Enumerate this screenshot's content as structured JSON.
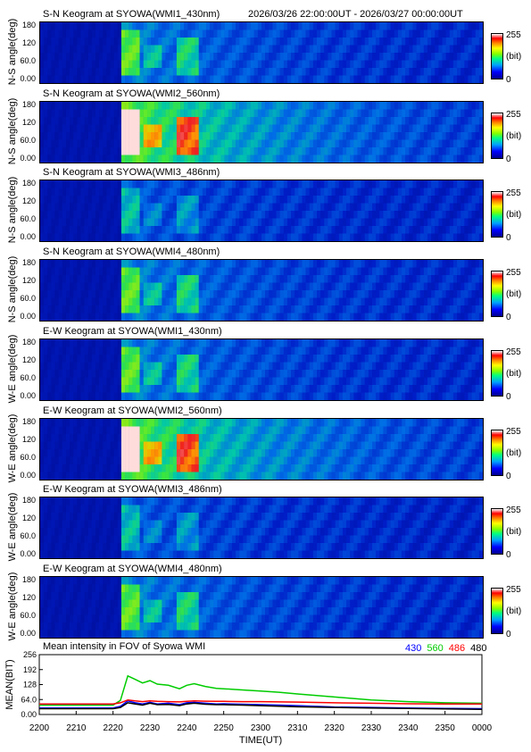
{
  "header": {
    "station_time": "2026/03/26 22:00:00UT - 2026/03/27 00:00:00UT"
  },
  "keograms": [
    {
      "title": "S-N Keogram at SYOWA(WMI1_430nm)",
      "ylabel": "N-S angle(deg)",
      "intensity": 0.45
    },
    {
      "title": "S-N Keogram at SYOWA(WMI2_560nm)",
      "ylabel": "N-S angle(deg)",
      "intensity": 1.0
    },
    {
      "title": "S-N Keogram at SYOWA(WMI3_486nm)",
      "ylabel": "N-S angle(deg)",
      "intensity": 0.3
    },
    {
      "title": "S-N Keogram at SYOWA(WMI4_480nm)",
      "ylabel": "N-S angle(deg)",
      "intensity": 0.45
    },
    {
      "title": "E-W Keogram at SYOWA(WMI1_430nm)",
      "ylabel": "W-E angle(deg)",
      "intensity": 0.45
    },
    {
      "title": "E-W Keogram at SYOWA(WMI2_560nm)",
      "ylabel": "W-E angle(deg)",
      "intensity": 1.0
    },
    {
      "title": "E-W Keogram at SYOWA(WMI3_486nm)",
      "ylabel": "W-E angle(deg)",
      "intensity": 0.3
    },
    {
      "title": "E-W Keogram at SYOWA(WMI4_480nm)",
      "ylabel": "W-E angle(deg)",
      "intensity": 0.45
    }
  ],
  "keogram_yticks": [
    "180",
    "120",
    "60.0",
    "0.00"
  ],
  "colorbar": {
    "max": "255",
    "unit": "(bit)",
    "min": "0"
  },
  "chart_data": {
    "type": "line",
    "title": "Mean intensity in FOV of Syowa WMI",
    "xlabel": "TIME(UT)",
    "ylabel": "MEAN(BIT)",
    "ylim": [
      0,
      256
    ],
    "yticks": [
      "256",
      "192",
      "128",
      "64.0",
      "0.00"
    ],
    "xticks": [
      "2200",
      "2210",
      "2220",
      "2230",
      "2240",
      "2250",
      "2300",
      "2310",
      "2320",
      "2330",
      "2340",
      "2350",
      "0000"
    ],
    "x": [
      0,
      10,
      20,
      22,
      24,
      26,
      28,
      30,
      32,
      35,
      38,
      40,
      42,
      45,
      48,
      50,
      55,
      60,
      65,
      70,
      80,
      90,
      100,
      110,
      120
    ],
    "series": [
      {
        "name": "430",
        "color": "#0000ff",
        "values": [
          28,
          28,
          28,
          35,
          58,
          50,
          45,
          52,
          45,
          48,
          42,
          50,
          52,
          48,
          45,
          46,
          44,
          42,
          40,
          38,
          32,
          30,
          28,
          26,
          25
        ]
      },
      {
        "name": "560",
        "color": "#00cc00",
        "values": [
          40,
          40,
          40,
          60,
          165,
          150,
          135,
          145,
          130,
          125,
          110,
          125,
          132,
          120,
          112,
          110,
          105,
          100,
          95,
          88,
          75,
          62,
          55,
          50,
          48
        ]
      },
      {
        "name": "486",
        "color": "#ff0000",
        "values": [
          45,
          45,
          45,
          50,
          62,
          58,
          55,
          58,
          56,
          55,
          54,
          56,
          58,
          57,
          56,
          56,
          55,
          55,
          54,
          53,
          50,
          48,
          46,
          45,
          45
        ]
      },
      {
        "name": "480",
        "color": "#000000",
        "values": [
          25,
          25,
          25,
          30,
          50,
          45,
          40,
          48,
          42,
          43,
          38,
          45,
          48,
          44,
          42,
          42,
          40,
          38,
          35,
          33,
          30,
          28,
          26,
          24,
          22
        ]
      }
    ]
  }
}
